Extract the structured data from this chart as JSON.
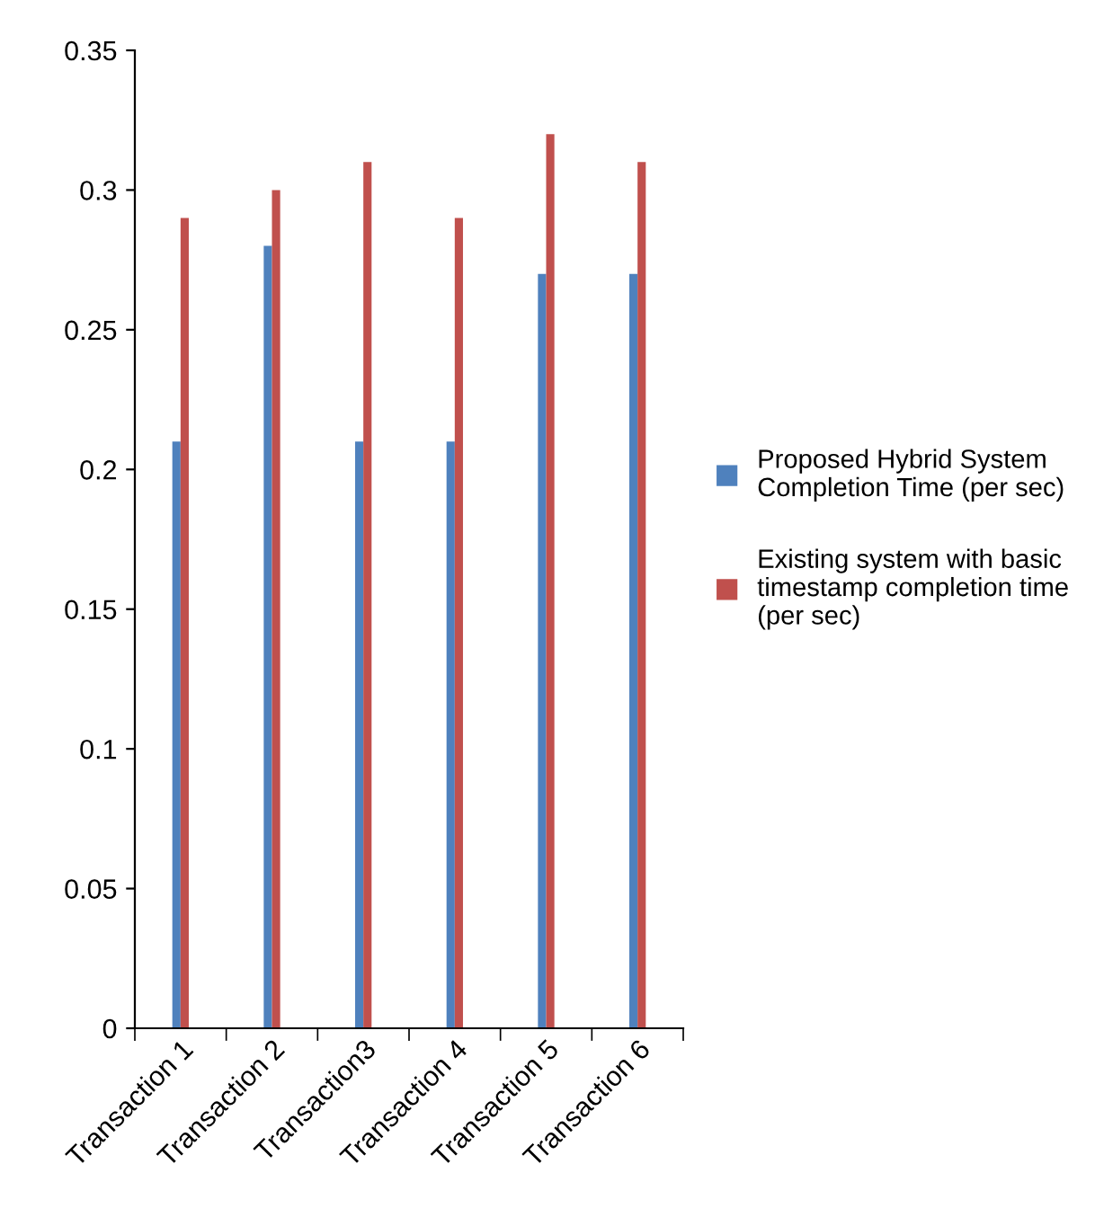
{
  "chart_data": {
    "type": "bar",
    "categories": [
      "Transaction 1",
      "Transaction 2",
      "Transaction3",
      "Transaction 4",
      "Transaction 5",
      "Transaction 6"
    ],
    "series": [
      {
        "name": "Proposed Hybrid System\nCompletion Time (per sec)",
        "color": "#4f81bd",
        "values": [
          0.21,
          0.28,
          0.21,
          0.21,
          0.27,
          0.27
        ]
      },
      {
        "name": "Existing system with basic\ntimestamp completion time\n(per sec)",
        "color": "#c0504d",
        "values": [
          0.29,
          0.3,
          0.31,
          0.29,
          0.32,
          0.31
        ]
      }
    ],
    "ylim": [
      0,
      0.35
    ],
    "yticks": [
      0,
      {
        "value": 0.05,
        "label": "0.05"
      },
      {
        "value": 0.1,
        "label": "0.1"
      },
      {
        "value": 0.15,
        "label": "0.15"
      },
      {
        "value": 0.2,
        "label": "0.2"
      },
      {
        "value": 0.25,
        "label": "0.25"
      },
      {
        "value": 0.3,
        "label": "0.3"
      },
      {
        "value": 0.35,
        "label": "0.35"
      }
    ],
    "grid": false,
    "legend": "right"
  }
}
